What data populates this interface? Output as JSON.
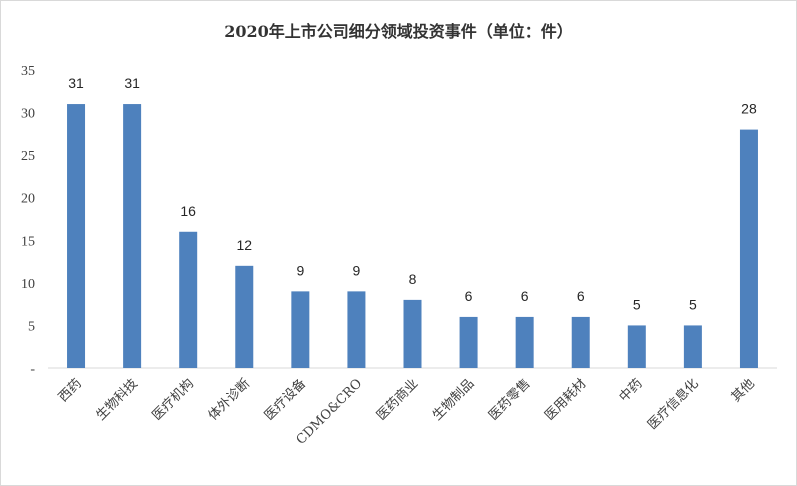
{
  "chart_data": {
    "type": "bar",
    "title": "2020年上市公司细分领域投资事件（单位：件）",
    "categories": [
      "西药",
      "生物科技",
      "医疗机构",
      "体外诊断",
      "医疗设备",
      "CDMO&CRO",
      "医药商业",
      "生物制品",
      "医药零售",
      "医用耗材",
      "中药",
      "医疗信息化",
      "其他"
    ],
    "values": [
      31,
      31,
      16,
      12,
      9,
      9,
      8,
      6,
      6,
      6,
      5,
      5,
      28
    ],
    "data_labels": [
      "31",
      "31",
      "16",
      "12",
      "9",
      "9",
      "8",
      "6",
      "6",
      "6",
      "5",
      "5",
      "28"
    ],
    "y_ticks": [
      0,
      5,
      10,
      15,
      20,
      25,
      30,
      35
    ],
    "y_tick_labels": [
      "-",
      "5",
      "10",
      "15",
      "20",
      "25",
      "30",
      "35"
    ],
    "ylim": [
      0,
      35
    ],
    "xlabel": "",
    "ylabel": "",
    "grid": false,
    "legend": "none",
    "bar_color": "#4e81bd"
  }
}
